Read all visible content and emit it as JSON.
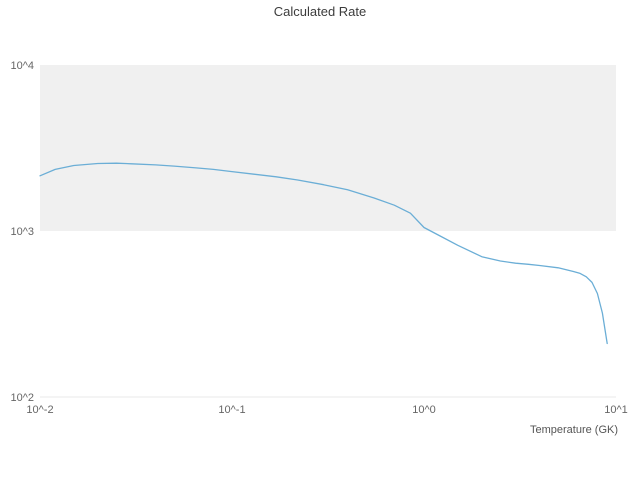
{
  "chart": {
    "title": "Calculated Rate",
    "xlabel": "Temperature (GK)"
  },
  "chart_data": {
    "type": "line",
    "title": "Calculated Rate",
    "xlabel": "Temperature (GK)",
    "ylabel": "",
    "x_scale": "log",
    "y_scale": "log",
    "xlim": [
      0.01,
      10
    ],
    "ylim": [
      100,
      10000
    ],
    "x_ticks": [
      {
        "value": 0.01,
        "label": "10^-2"
      },
      {
        "value": 0.1,
        "label": "10^-1"
      },
      {
        "value": 1,
        "label": "10^0"
      },
      {
        "value": 10,
        "label": "10^1"
      }
    ],
    "y_ticks": [
      {
        "value": 100,
        "label": "10^2"
      },
      {
        "value": 1000,
        "label": "10^3"
      },
      {
        "value": 10000,
        "label": "10^4"
      }
    ],
    "band": {
      "from": 1000,
      "to": 10000,
      "color": "#f0f0f0"
    },
    "legend": "none",
    "grid": "decade-band",
    "colors": {
      "line": "#6baed6",
      "band": "#f0f0f0",
      "tick_text": "#666666",
      "title_text": "#3c3c3c",
      "axis_edge": "#e8e8e8"
    },
    "series": [
      {
        "name": "Calculated Rate",
        "x": [
          0.01,
          0.012,
          0.015,
          0.02,
          0.025,
          0.03,
          0.04,
          0.05,
          0.065,
          0.08,
          0.1,
          0.13,
          0.17,
          0.22,
          0.3,
          0.4,
          0.55,
          0.7,
          0.85,
          1.0,
          1.2,
          1.5,
          2.0,
          2.5,
          3.0,
          3.5,
          4.0,
          5.0,
          6.0,
          6.5,
          7.0,
          7.5,
          8.0,
          8.5,
          9.0
        ],
        "y": [
          2150,
          2350,
          2480,
          2550,
          2560,
          2540,
          2500,
          2460,
          2400,
          2350,
          2280,
          2200,
          2120,
          2030,
          1900,
          1770,
          1580,
          1430,
          1280,
          1050,
          940,
          820,
          700,
          660,
          640,
          630,
          620,
          600,
          570,
          555,
          530,
          490,
          420,
          320,
          210
        ]
      }
    ]
  }
}
